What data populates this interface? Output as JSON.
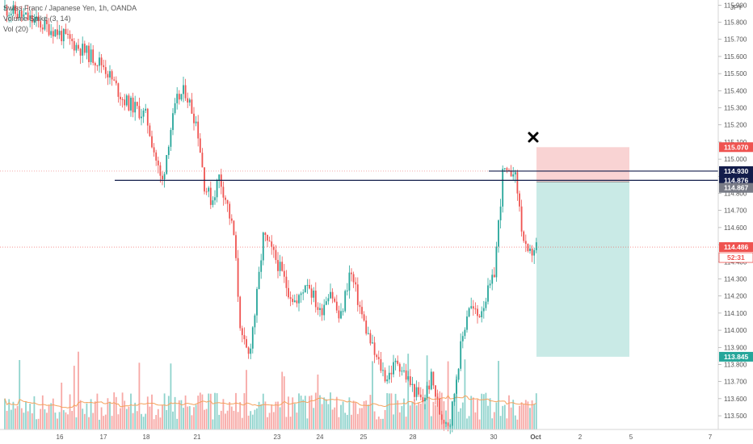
{
  "legend": {
    "symbol_line": "Swiss Franc / Japanese Yen, 1h, OANDA",
    "indicator_line": "Volume Spike (3, 14)",
    "volume_line": "Vol (20)"
  },
  "currency": "JPY",
  "colors": {
    "up": "#26a69a",
    "down": "#ef5350",
    "up_volume": "#8fd3cc",
    "down_volume": "#f7a8a5",
    "ma_line": "#f5a25d",
    "level_line": "#131d4b",
    "stop_zone": "#f8c8c8",
    "target_zone": "#b7e3dd",
    "current_price": "#ef5350"
  },
  "chart_data": {
    "type": "candlestick",
    "symbol": "Swiss Franc / Japanese Yen",
    "timeframe": "1h",
    "source": "OANDA",
    "ylim": [
      113.42,
      115.93
    ],
    "y_ticks": [
      "115.900",
      "115.800",
      "115.700",
      "115.600",
      "115.500",
      "115.400",
      "115.300",
      "115.200",
      "115.100",
      "115.000",
      "114.900",
      "114.800",
      "114.700",
      "114.600",
      "114.500",
      "114.400",
      "114.300",
      "114.200",
      "114.100",
      "114.000",
      "113.900",
      "113.800",
      "113.700",
      "113.600",
      "113.500"
    ],
    "x_ticks": [
      "16",
      "17",
      "18",
      "21",
      "23",
      "24",
      "25",
      "28",
      "30",
      "Oct",
      "2",
      "5",
      "7"
    ],
    "price_path": [
      [
        "16",
        115.88
      ],
      [
        "16",
        115.75
      ],
      [
        "17",
        115.55
      ],
      [
        "17",
        115.35
      ],
      [
        "18",
        115.25
      ],
      [
        "18",
        115.05
      ],
      [
        "18",
        114.85
      ],
      [
        "18",
        115.15
      ],
      [
        "18",
        115.35
      ],
      [
        "18",
        115.4
      ],
      [
        "21",
        115.2
      ],
      [
        "21",
        114.85
      ],
      [
        "21",
        114.75
      ],
      [
        "21",
        114.9
      ],
      [
        "21",
        114.75
      ],
      [
        "21",
        114.55
      ],
      [
        "21",
        113.95
      ],
      [
        "21",
        113.85
      ],
      [
        "21",
        114.15
      ],
      [
        "21",
        114.55
      ],
      [
        "23",
        114.4
      ],
      [
        "23",
        114.25
      ],
      [
        "23",
        114.15
      ],
      [
        "23",
        114.3
      ],
      [
        "24",
        114.1
      ],
      [
        "24",
        114.25
      ],
      [
        "24",
        114.05
      ],
      [
        "24",
        114.35
      ],
      [
        "25",
        114.05
      ],
      [
        "25",
        113.85
      ],
      [
        "25",
        113.72
      ],
      [
        "25",
        113.82
      ],
      [
        "28",
        113.66
      ],
      [
        "28",
        113.58
      ],
      [
        "28",
        113.72
      ],
      [
        "28",
        113.5
      ],
      [
        "28",
        113.46
      ],
      [
        "28",
        113.85
      ],
      [
        "28",
        114.15
      ],
      [
        "28",
        114.08
      ],
      [
        "30",
        114.3
      ],
      [
        "30",
        114.62
      ],
      [
        "30",
        114.95
      ],
      [
        "30",
        114.88
      ],
      [
        "30",
        114.96
      ],
      [
        "30",
        114.8
      ],
      [
        "30",
        114.55
      ],
      [
        "30",
        114.42
      ],
      [
        "Oct",
        114.49
      ]
    ],
    "horizontal_levels": [
      114.93,
      114.876
    ],
    "price_labels": {
      "stop": "115.070",
      "level_upper": "114.930",
      "level_lower": "114.876",
      "entry": "114.867",
      "current": "114.486",
      "countdown": "52:31",
      "target": "113.845"
    },
    "short_position": {
      "entry": 114.867,
      "stop": 115.07,
      "target": 113.845
    },
    "marker": "x",
    "volume_ma_period": 20,
    "grid": false,
    "legend_position": "top-left"
  }
}
